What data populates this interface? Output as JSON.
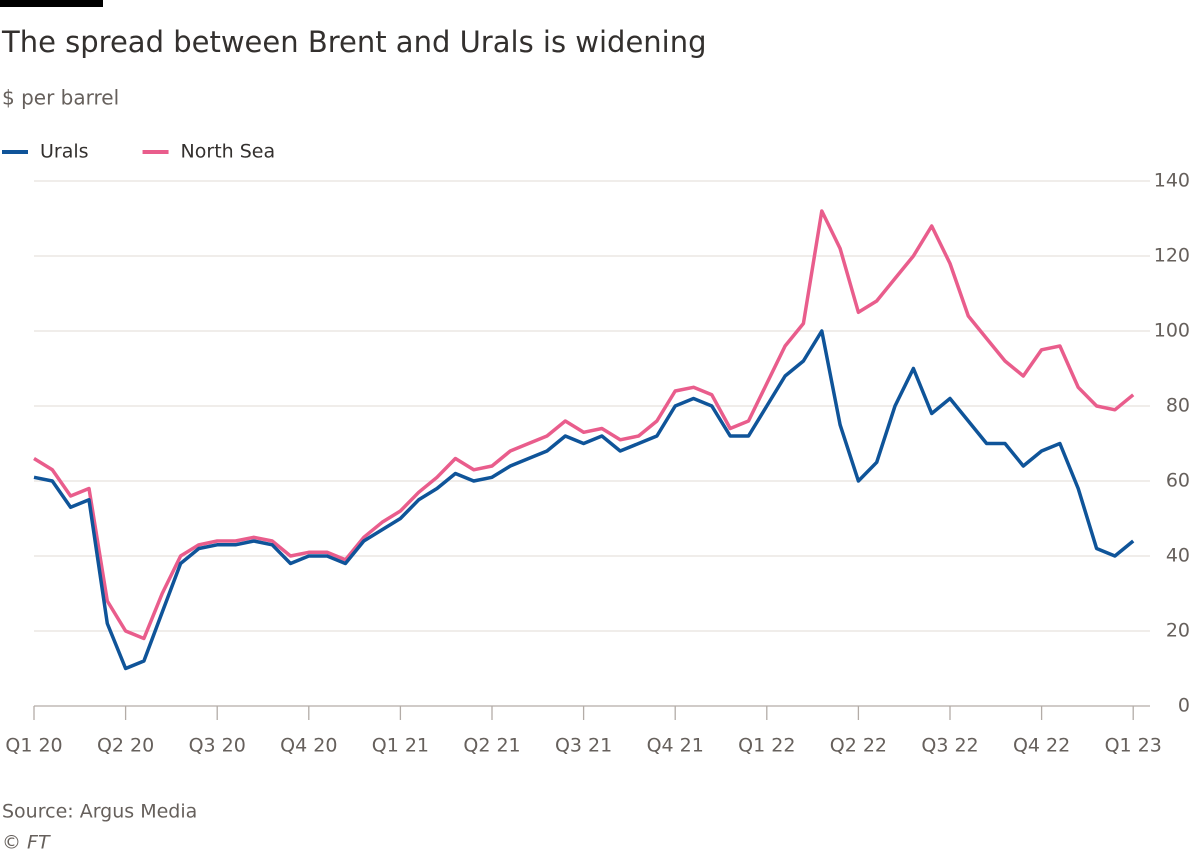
{
  "chart_data": {
    "type": "line",
    "title": "The spread between Brent and Urals is widening",
    "subtitle": "$ per barrel",
    "source": "Source: Argus Media",
    "credit": "© FT",
    "x": [
      0,
      0.2,
      0.4,
      0.6,
      0.8,
      1,
      1.2,
      1.4,
      1.6,
      1.8,
      2,
      2.2,
      2.4,
      2.6,
      2.8,
      3,
      3.2,
      3.4,
      3.6,
      3.8,
      4,
      4.2,
      4.4,
      4.6,
      4.8,
      5,
      5.2,
      5.4,
      5.6,
      5.8,
      6,
      6.2,
      6.4,
      6.6,
      6.8,
      7,
      7.2,
      7.4,
      7.6,
      7.8,
      8,
      8.2,
      8.4,
      8.6,
      8.8,
      9,
      9.2,
      9.4,
      9.6,
      9.8,
      10,
      10.2,
      10.4,
      10.6,
      10.8,
      11,
      11.2,
      11.4,
      11.6,
      11.8,
      12
    ],
    "series": [
      {
        "name": "Urals",
        "color": "#0f5499",
        "values": [
          61,
          60,
          53,
          55,
          22,
          10,
          12,
          25,
          38,
          42,
          43,
          43,
          44,
          43,
          38,
          40,
          40,
          38,
          44,
          47,
          50,
          55,
          58,
          62,
          60,
          61,
          64,
          66,
          68,
          72,
          70,
          72,
          68,
          70,
          72,
          80,
          82,
          80,
          72,
          72,
          80,
          88,
          92,
          100,
          75,
          60,
          65,
          80,
          90,
          78,
          82,
          76,
          70,
          70,
          64,
          68,
          70,
          58,
          42,
          40,
          44
        ]
      },
      {
        "name": "North Sea",
        "color": "#e95d8c",
        "values": [
          66,
          63,
          56,
          58,
          28,
          20,
          18,
          30,
          40,
          43,
          44,
          44,
          45,
          44,
          40,
          41,
          41,
          39,
          45,
          49,
          52,
          57,
          61,
          66,
          63,
          64,
          68,
          70,
          72,
          76,
          73,
          74,
          71,
          72,
          76,
          84,
          85,
          83,
          74,
          76,
          86,
          96,
          102,
          132,
          122,
          105,
          108,
          114,
          120,
          128,
          118,
          104,
          98,
          92,
          88,
          95,
          96,
          85,
          80,
          79,
          83
        ]
      }
    ],
    "xlim": [
      0,
      12.05
    ],
    "xticks": [
      {
        "value": 0,
        "label": "Q1 20"
      },
      {
        "value": 1,
        "label": "Q2 20"
      },
      {
        "value": 2,
        "label": "Q3 20"
      },
      {
        "value": 3,
        "label": "Q4 20"
      },
      {
        "value": 4,
        "label": "Q1 21"
      },
      {
        "value": 5,
        "label": "Q2 21"
      },
      {
        "value": 6,
        "label": "Q3 21"
      },
      {
        "value": 7,
        "label": "Q4 21"
      },
      {
        "value": 8,
        "label": "Q1 22"
      },
      {
        "value": 9,
        "label": "Q2 22"
      },
      {
        "value": 10,
        "label": "Q3 22"
      },
      {
        "value": 11,
        "label": "Q4 22"
      },
      {
        "value": 12,
        "label": "Q1 23"
      }
    ],
    "ylim": [
      0,
      140
    ],
    "yticks": [
      0,
      20,
      40,
      60,
      80,
      100,
      120,
      140
    ],
    "grid": true
  }
}
